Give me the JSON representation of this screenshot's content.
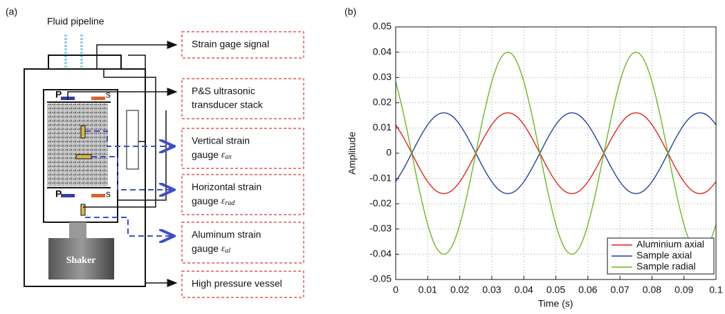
{
  "panel_a": {
    "label": "(a)",
    "pipeline": "Fluid pipeline",
    "shaker": "Shaker",
    "p_top": "P",
    "s_top": "s",
    "p_bottom": "P",
    "s_bottom": "s",
    "boxes": [
      {
        "lines": [
          "Strain gage signal"
        ]
      },
      {
        "lines": [
          "P&S ultrasonic",
          "transducer stack"
        ]
      },
      {
        "lines": [
          "Vertical strain",
          "gauge"
        ],
        "symbol": "ε",
        "subscript": "ax"
      },
      {
        "lines": [
          "Horizontal strain",
          "gauge"
        ],
        "symbol": "ε",
        "subscript": "rad"
      },
      {
        "lines": [
          "Aluminum strain",
          "gauge"
        ],
        "symbol": "ε",
        "subscript": "al"
      },
      {
        "lines": [
          "High pressure vessel"
        ]
      }
    ]
  },
  "chart_data": {
    "type": "line",
    "panel_label": "(b)",
    "xlabel": "Time (s)",
    "ylabel": "Amplitude",
    "x": [
      0,
      0.0025,
      0.005,
      0.0075,
      0.01,
      0.0125,
      0.015,
      0.0175,
      0.02,
      0.0225,
      0.025,
      0.0275,
      0.03,
      0.0325,
      0.035,
      0.0375,
      0.04,
      0.0425,
      0.045,
      0.0475,
      0.05,
      0.0525,
      0.055,
      0.0575,
      0.06,
      0.0625,
      0.065,
      0.0675,
      0.07,
      0.0725,
      0.075,
      0.0775,
      0.08,
      0.0825,
      0.085,
      0.0875,
      0.09,
      0.0925,
      0.095,
      0.0975,
      0.1
    ],
    "series": [
      {
        "name": "Aluminium axial",
        "color": "#e0201b",
        "values": [
          0.0113,
          0.0061,
          0,
          -0.0061,
          -0.0113,
          -0.0148,
          -0.016,
          -0.0148,
          -0.0113,
          -0.0061,
          0,
          0.0061,
          0.0113,
          0.0148,
          0.016,
          0.0148,
          0.0113,
          0.0061,
          0,
          -0.0061,
          -0.0113,
          -0.0148,
          -0.016,
          -0.0148,
          -0.0113,
          -0.0061,
          0,
          0.0061,
          0.0113,
          0.0148,
          0.016,
          0.0148,
          0.0113,
          0.0061,
          0,
          -0.0061,
          -0.0113,
          -0.0148,
          -0.016,
          -0.0148,
          -0.0113
        ]
      },
      {
        "name": "Sample axial",
        "color": "#1f3f9a",
        "values": [
          -0.0113,
          -0.0061,
          0,
          0.0061,
          0.0113,
          0.0148,
          0.016,
          0.0148,
          0.0113,
          0.0061,
          0,
          -0.0061,
          -0.0113,
          -0.0148,
          -0.016,
          -0.0148,
          -0.0113,
          -0.0061,
          0,
          0.0061,
          0.0113,
          0.0148,
          0.016,
          0.0148,
          0.0113,
          0.0061,
          0,
          -0.0061,
          -0.0113,
          -0.0148,
          -0.016,
          -0.0148,
          -0.0113,
          -0.0061,
          0,
          0.0061,
          0.0113,
          0.0148,
          0.016,
          0.0148,
          0.0113
        ]
      },
      {
        "name": "Sample radial",
        "color": "#6ab81c",
        "values": [
          0.0283,
          0.0153,
          0,
          -0.0153,
          -0.0283,
          -0.037,
          -0.04,
          -0.037,
          -0.0283,
          -0.0153,
          0,
          0.0153,
          0.0283,
          0.037,
          0.04,
          0.037,
          0.0283,
          0.0153,
          0,
          -0.0153,
          -0.0283,
          -0.037,
          -0.04,
          -0.037,
          -0.0283,
          -0.0153,
          0,
          0.0153,
          0.0283,
          0.037,
          0.04,
          0.037,
          0.0283,
          0.0153,
          0,
          -0.0153,
          -0.0283,
          -0.037,
          -0.04,
          -0.037,
          -0.0283
        ]
      }
    ],
    "xlim": [
      0,
      0.1
    ],
    "ylim": [
      -0.05,
      0.05
    ],
    "xticks": [
      0,
      0.01,
      0.02,
      0.03,
      0.04,
      0.05,
      0.06,
      0.07,
      0.08,
      0.09,
      0.1
    ],
    "yticks": [
      -0.05,
      -0.04,
      -0.03,
      -0.02,
      -0.01,
      0,
      0.01,
      0.02,
      0.03,
      0.04,
      0.05
    ],
    "grid": true,
    "legend": "lower-right"
  }
}
